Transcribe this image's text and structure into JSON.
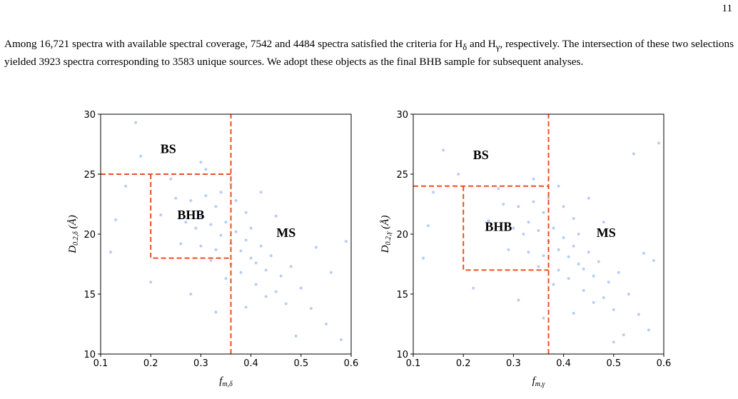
{
  "page_number": "11",
  "paragraph": [
    {
      "text": "Among 16,721 spectra with available spectral coverage, 7542 and 4484 spectra satisfied the criteria for H"
    },
    {
      "sub": "δ"
    },
    {
      "text": " and H"
    },
    {
      "sub": "γ"
    },
    {
      "text": ", respectively. The intersection of these two selections yielded 3923 spectra corresponding to 3583 unique sources. We adopt these objects as the final BHB sample for subsequent analyses."
    }
  ],
  "chart_data": [
    {
      "type": "scatter",
      "color": "#a4c2f0",
      "line_color": "#e8501e",
      "xlabel": {
        "main": "f",
        "sub": "m,δ"
      },
      "ylabel": {
        "main": "D",
        "sub": "0.2,δ",
        "unit": " (Å)"
      },
      "xlim": [
        0.1,
        0.6
      ],
      "ylim": [
        10,
        30
      ],
      "xticks": [
        0.1,
        0.2,
        0.3,
        0.4,
        0.5,
        0.6
      ],
      "yticks": [
        10,
        15,
        20,
        25,
        30
      ],
      "x": [
        0.3,
        0.32,
        0.34,
        0.36,
        0.38,
        0.4,
        0.33,
        0.35,
        0.37,
        0.39,
        0.41,
        0.43,
        0.28,
        0.31,
        0.29,
        0.33,
        0.36,
        0.38,
        0.42,
        0.44,
        0.46,
        0.34,
        0.27,
        0.3,
        0.32,
        0.35,
        0.39,
        0.41,
        0.45,
        0.48,
        0.25,
        0.26,
        0.37,
        0.4,
        0.43,
        0.47,
        0.5,
        0.22,
        0.24,
        0.31,
        0.36,
        0.52,
        0.55,
        0.58,
        0.18,
        0.15,
        0.12,
        0.17,
        0.2,
        0.53,
        0.56,
        0.28,
        0.45,
        0.49,
        0.33,
        0.42,
        0.13,
        0.59,
        0.39,
        0.3
      ],
      "y": [
        21.5,
        20.8,
        19.9,
        19.2,
        18.6,
        18.0,
        22.3,
        21.0,
        20.2,
        19.5,
        17.6,
        17.0,
        22.8,
        23.2,
        20.5,
        18.7,
        17.5,
        16.8,
        19.0,
        18.2,
        16.5,
        23.5,
        21.0,
        19.0,
        17.8,
        16.3,
        21.8,
        15.8,
        15.2,
        17.3,
        23.0,
        19.2,
        22.8,
        20.5,
        14.8,
        14.2,
        15.5,
        21.6,
        24.6,
        25.4,
        24.2,
        13.8,
        12.5,
        11.2,
        26.5,
        24.0,
        18.5,
        29.3,
        16.0,
        18.9,
        16.8,
        15.0,
        21.5,
        11.5,
        13.5,
        23.5,
        21.2,
        19.4,
        13.9,
        26.0
      ],
      "lines": [
        {
          "x": [
            0.36,
            0.36
          ],
          "y": [
            10,
            30
          ]
        },
        {
          "x": [
            0.1,
            0.36
          ],
          "y": [
            25,
            25
          ]
        },
        {
          "x": [
            0.2,
            0.2,
            0.36
          ],
          "y": [
            25,
            18,
            18
          ]
        }
      ],
      "annotations": [
        {
          "text": "BS",
          "x": 0.235,
          "y": 27
        },
        {
          "text": "BHB",
          "x": 0.28,
          "y": 21.5
        },
        {
          "text": "MS",
          "x": 0.47,
          "y": 20
        }
      ]
    },
    {
      "type": "scatter",
      "color": "#a4c2f0",
      "line_color": "#e8501e",
      "xlabel": {
        "main": "f",
        "sub": "m,γ"
      },
      "ylabel": {
        "main": "D",
        "sub": "0.2,γ",
        "unit": " (Å)"
      },
      "xlim": [
        0.1,
        0.6
      ],
      "ylim": [
        10,
        30
      ],
      "xticks": [
        0.1,
        0.2,
        0.3,
        0.4,
        0.5,
        0.6
      ],
      "yticks": [
        10,
        15,
        20,
        25,
        30
      ],
      "x": [
        0.33,
        0.35,
        0.37,
        0.39,
        0.41,
        0.43,
        0.36,
        0.38,
        0.4,
        0.42,
        0.44,
        0.46,
        0.31,
        0.34,
        0.32,
        0.36,
        0.39,
        0.41,
        0.45,
        0.47,
        0.49,
        0.37,
        0.3,
        0.33,
        0.35,
        0.38,
        0.42,
        0.44,
        0.48,
        0.51,
        0.28,
        0.29,
        0.4,
        0.43,
        0.46,
        0.5,
        0.53,
        0.25,
        0.27,
        0.34,
        0.39,
        0.55,
        0.57,
        0.52,
        0.16,
        0.14,
        0.12,
        0.19,
        0.22,
        0.56,
        0.58,
        0.31,
        0.48,
        0.5,
        0.36,
        0.45,
        0.13,
        0.59,
        0.42,
        0.54
      ],
      "y": [
        21.0,
        20.3,
        19.4,
        18.7,
        18.1,
        17.5,
        21.8,
        20.5,
        19.7,
        19.0,
        17.1,
        16.5,
        22.3,
        22.7,
        20.0,
        18.2,
        17.0,
        16.3,
        18.5,
        17.7,
        16.0,
        23.0,
        20.5,
        18.5,
        17.3,
        15.8,
        21.3,
        15.3,
        14.7,
        16.8,
        22.5,
        18.7,
        22.3,
        20.0,
        14.3,
        13.7,
        15.0,
        21.1,
        23.8,
        24.6,
        24.0,
        13.3,
        12.0,
        11.6,
        27.0,
        23.5,
        18.0,
        25.0,
        15.5,
        18.4,
        17.8,
        14.5,
        21.0,
        11.0,
        13.0,
        23.0,
        20.7,
        27.6,
        13.4,
        26.7
      ],
      "lines": [
        {
          "x": [
            0.37,
            0.37
          ],
          "y": [
            10,
            30
          ]
        },
        {
          "x": [
            0.1,
            0.37
          ],
          "y": [
            24,
            24
          ]
        },
        {
          "x": [
            0.2,
            0.2,
            0.37
          ],
          "y": [
            24,
            17,
            17
          ]
        }
      ],
      "annotations": [
        {
          "text": "BS",
          "x": 0.235,
          "y": 26.5
        },
        {
          "text": "BHB",
          "x": 0.27,
          "y": 20.5
        },
        {
          "text": "MS",
          "x": 0.485,
          "y": 20
        }
      ]
    }
  ]
}
